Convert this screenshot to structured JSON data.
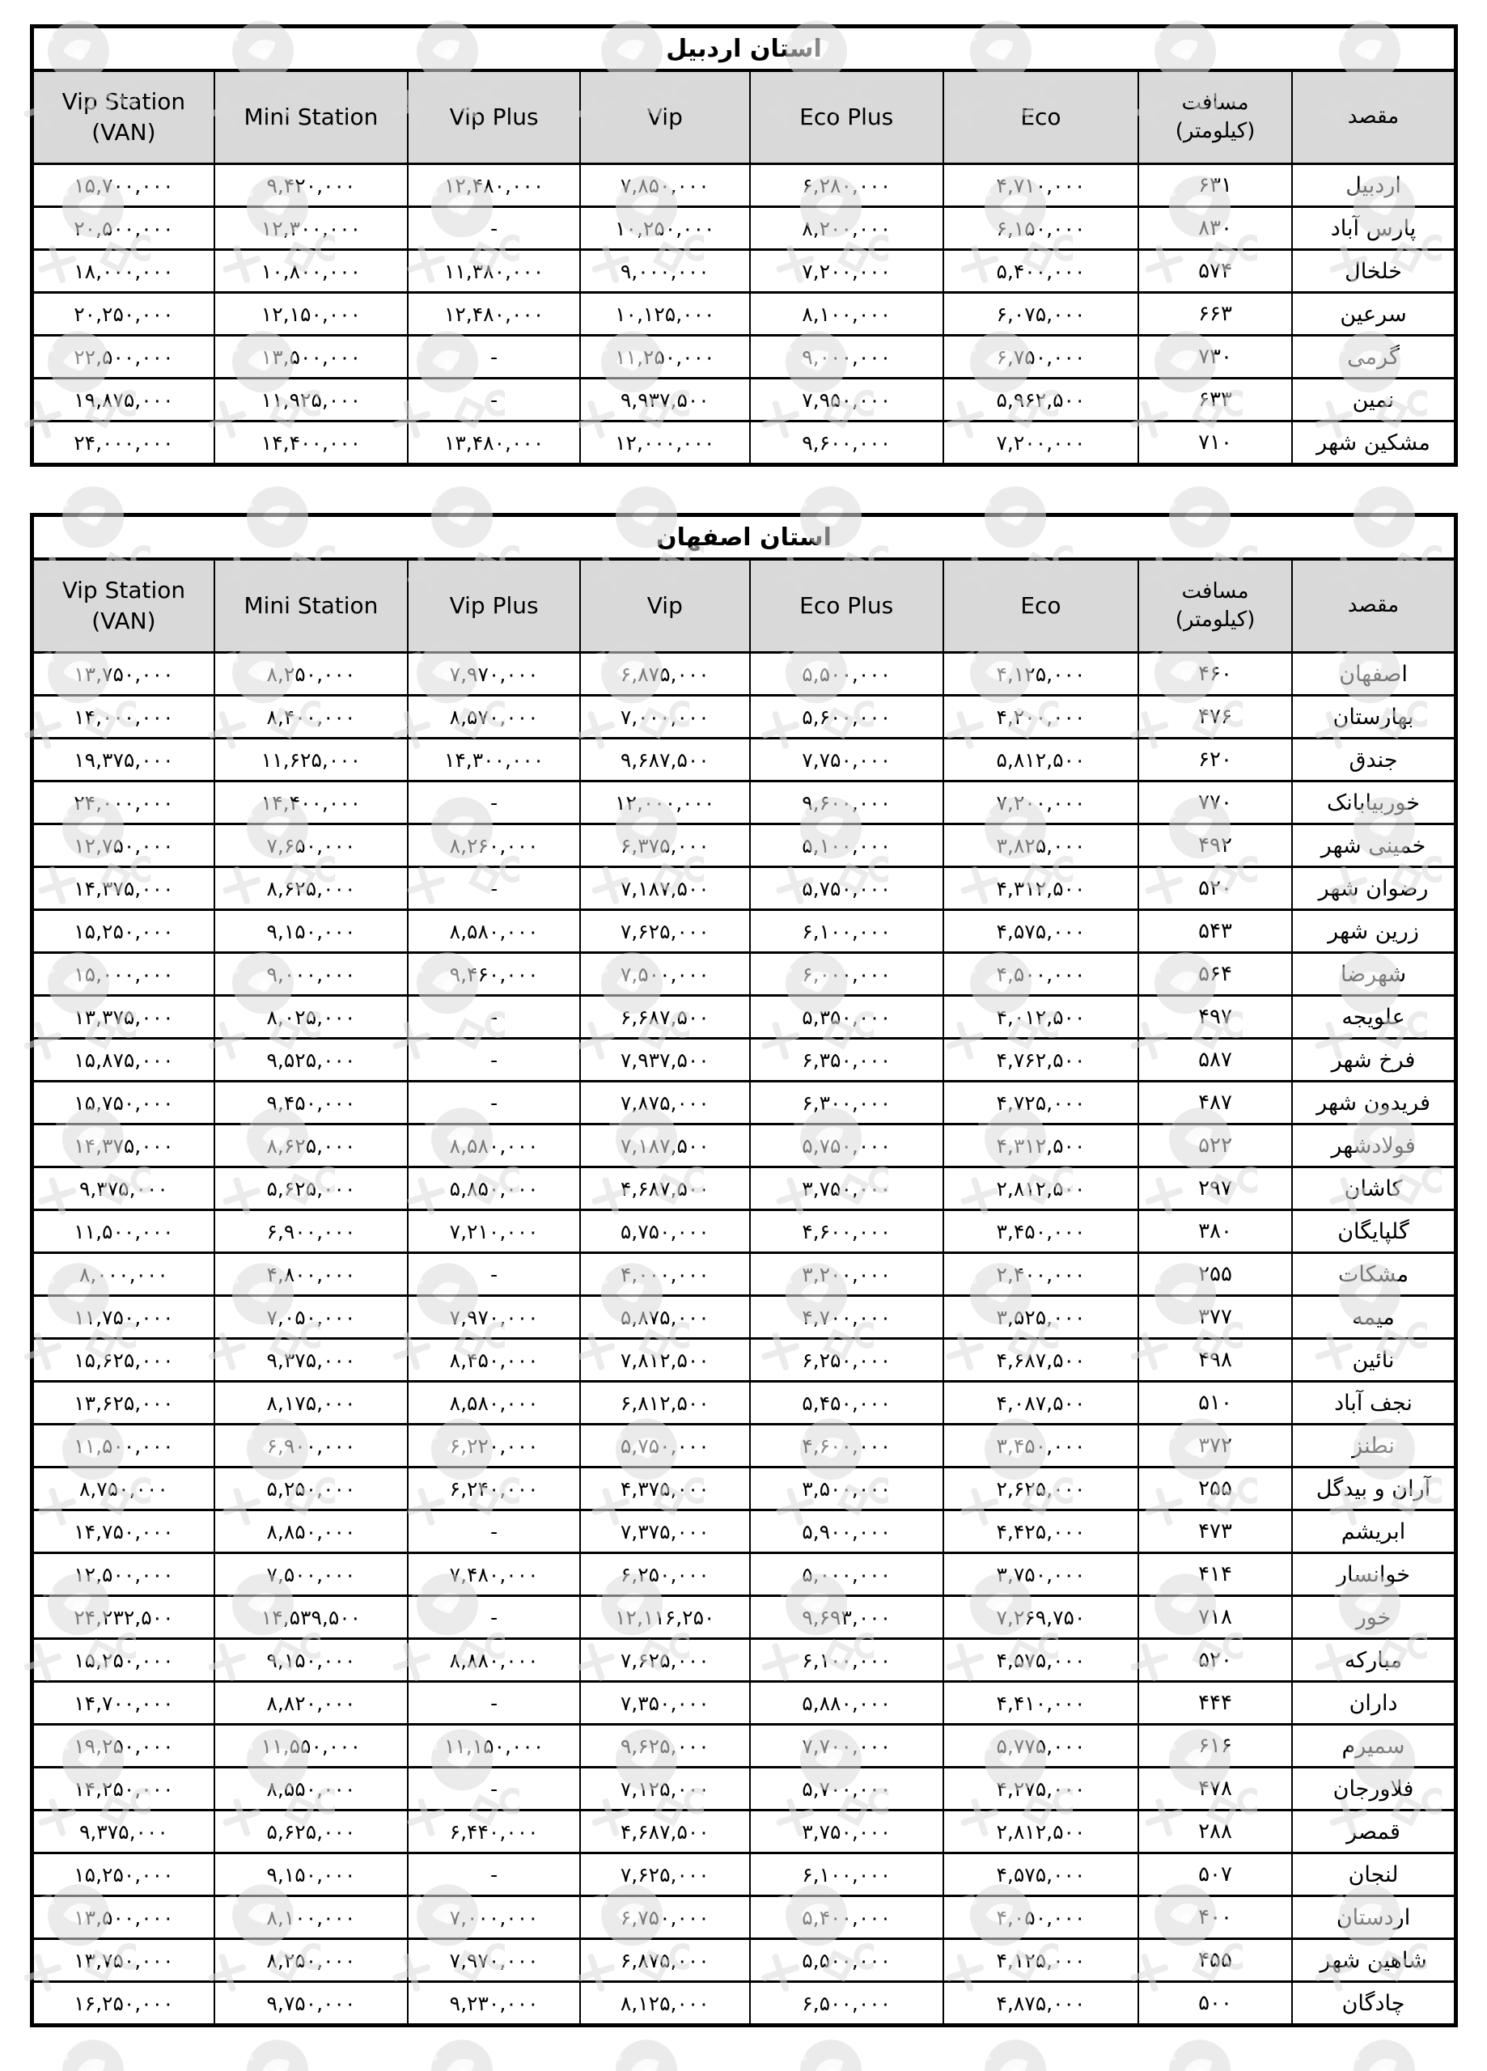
{
  "page": {
    "background": "#ffffff",
    "text_color": "#000000",
    "header_bg": "#d9d9d9",
    "border_color": "#000000",
    "watermark_color": "#dcdcdc",
    "empty_cell": "-"
  },
  "columns": [
    {
      "key": "vip_station_van",
      "lines": [
        "Vip Station",
        "(VAN)"
      ],
      "rtl": false
    },
    {
      "key": "mini_station",
      "lines": [
        "Mini Station"
      ],
      "rtl": false
    },
    {
      "key": "vip_plus",
      "lines": [
        "Vip Plus"
      ],
      "rtl": false
    },
    {
      "key": "vip",
      "lines": [
        "Vip"
      ],
      "rtl": false
    },
    {
      "key": "eco_plus",
      "lines": [
        "Eco Plus"
      ],
      "rtl": false
    },
    {
      "key": "eco",
      "lines": [
        "Eco"
      ],
      "rtl": false
    },
    {
      "key": "distance",
      "lines": [
        "مسافت",
        "(کیلومتر)"
      ],
      "rtl": true
    },
    {
      "key": "destination",
      "lines": [
        "مقصد"
      ],
      "rtl": true
    }
  ],
  "tables": [
    {
      "title": "استان اردبیل",
      "rows": [
        [
          "۱۵,۷۰۰,۰۰۰",
          "۹,۴۲۰,۰۰۰",
          "۱۲,۴۸۰,۰۰۰",
          "۷,۸۵۰,۰۰۰",
          "۶,۲۸۰,۰۰۰",
          "۴,۷۱۰,۰۰۰",
          "۶۳۱",
          "اردبیل"
        ],
        [
          "۲۰,۵۰۰,۰۰۰",
          "۱۲,۳۰۰,۰۰۰",
          "-",
          "۱۰,۲۵۰,۰۰۰",
          "۸,۲۰۰,۰۰۰",
          "۶,۱۵۰,۰۰۰",
          "۸۳۰",
          "پارس آباد"
        ],
        [
          "۱۸,۰۰۰,۰۰۰",
          "۱۰,۸۰۰,۰۰۰",
          "۱۱,۳۸۰,۰۰۰",
          "۹,۰۰۰,۰۰۰",
          "۷,۲۰۰,۰۰۰",
          "۵,۴۰۰,۰۰۰",
          "۵۷۴",
          "خلخال"
        ],
        [
          "۲۰,۲۵۰,۰۰۰",
          "۱۲,۱۵۰,۰۰۰",
          "۱۲,۴۸۰,۰۰۰",
          "۱۰,۱۲۵,۰۰۰",
          "۸,۱۰۰,۰۰۰",
          "۶,۰۷۵,۰۰۰",
          "۶۶۳",
          "سرعین"
        ],
        [
          "۲۲,۵۰۰,۰۰۰",
          "۱۳,۵۰۰,۰۰۰",
          "-",
          "۱۱,۲۵۰,۰۰۰",
          "۹,۰۰۰,۰۰۰",
          "۶,۷۵۰,۰۰۰",
          "۷۳۰",
          "گرمی"
        ],
        [
          "۱۹,۸۷۵,۰۰۰",
          "۱۱,۹۲۵,۰۰۰",
          "-",
          "۹,۹۳۷,۵۰۰",
          "۷,۹۵۰,۰۰۰",
          "۵,۹۶۲,۵۰۰",
          "۶۳۳",
          "نمین"
        ],
        [
          "۲۴,۰۰۰,۰۰۰",
          "۱۴,۴۰۰,۰۰۰",
          "۱۳,۴۸۰,۰۰۰",
          "۱۲,۰۰۰,۰۰۰",
          "۹,۶۰۰,۰۰۰",
          "۷,۲۰۰,۰۰۰",
          "۷۱۰",
          "مشکین شهر"
        ]
      ]
    },
    {
      "title": "استان اصفهان",
      "rows": [
        [
          "۱۳,۷۵۰,۰۰۰",
          "۸,۲۵۰,۰۰۰",
          "۷,۹۷۰,۰۰۰",
          "۶,۸۷۵,۰۰۰",
          "۵,۵۰۰,۰۰۰",
          "۴,۱۲۵,۰۰۰",
          "۴۶۰",
          "اصفهان"
        ],
        [
          "۱۴,۰۰۰,۰۰۰",
          "۸,۴۰۰,۰۰۰",
          "۸,۵۷۰,۰۰۰",
          "۷,۰۰۰,۰۰۰",
          "۵,۶۰۰,۰۰۰",
          "۴,۲۰۰,۰۰۰",
          "۴۷۶",
          "بهارستان"
        ],
        [
          "۱۹,۳۷۵,۰۰۰",
          "۱۱,۶۲۵,۰۰۰",
          "۱۴,۳۰۰,۰۰۰",
          "۹,۶۸۷,۵۰۰",
          "۷,۷۵۰,۰۰۰",
          "۵,۸۱۲,۵۰۰",
          "۶۲۰",
          "جندق"
        ],
        [
          "۲۴,۰۰۰,۰۰۰",
          "۱۴,۴۰۰,۰۰۰",
          "-",
          "۱۲,۰۰۰,۰۰۰",
          "۹,۶۰۰,۰۰۰",
          "۷,۲۰۰,۰۰۰",
          "۷۷۰",
          "خوربیابانک"
        ],
        [
          "۱۲,۷۵۰,۰۰۰",
          "۷,۶۵۰,۰۰۰",
          "۸,۲۶۰,۰۰۰",
          "۶,۳۷۵,۰۰۰",
          "۵,۱۰۰,۰۰۰",
          "۳,۸۲۵,۰۰۰",
          "۴۹۲",
          "خمینی شهر"
        ],
        [
          "۱۴,۳۷۵,۰۰۰",
          "۸,۶۲۵,۰۰۰",
          "-",
          "۷,۱۸۷,۵۰۰",
          "۵,۷۵۰,۰۰۰",
          "۴,۳۱۲,۵۰۰",
          "۵۲۰",
          "رضوان شهر"
        ],
        [
          "۱۵,۲۵۰,۰۰۰",
          "۹,۱۵۰,۰۰۰",
          "۸,۵۸۰,۰۰۰",
          "۷,۶۲۵,۰۰۰",
          "۶,۱۰۰,۰۰۰",
          "۴,۵۷۵,۰۰۰",
          "۵۴۳",
          "زرین شهر"
        ],
        [
          "۱۵,۰۰۰,۰۰۰",
          "۹,۰۰۰,۰۰۰",
          "۹,۴۶۰,۰۰۰",
          "۷,۵۰۰,۰۰۰",
          "۶,۰۰۰,۰۰۰",
          "۴,۵۰۰,۰۰۰",
          "۵۶۴",
          "شهرضا"
        ],
        [
          "۱۳,۳۷۵,۰۰۰",
          "۸,۰۲۵,۰۰۰",
          "-",
          "۶,۶۸۷,۵۰۰",
          "۵,۳۵۰,۰۰۰",
          "۴,۰۱۲,۵۰۰",
          "۴۹۷",
          "علویجه"
        ],
        [
          "۱۵,۸۷۵,۰۰۰",
          "۹,۵۲۵,۰۰۰",
          "-",
          "۷,۹۳۷,۵۰۰",
          "۶,۳۵۰,۰۰۰",
          "۴,۷۶۲,۵۰۰",
          "۵۸۷",
          "فرخ شهر"
        ],
        [
          "۱۵,۷۵۰,۰۰۰",
          "۹,۴۵۰,۰۰۰",
          "-",
          "۷,۸۷۵,۰۰۰",
          "۶,۳۰۰,۰۰۰",
          "۴,۷۲۵,۰۰۰",
          "۴۸۷",
          "فریدون شهر"
        ],
        [
          "۱۴,۳۷۵,۰۰۰",
          "۸,۶۲۵,۰۰۰",
          "۸,۵۸۰,۰۰۰",
          "۷,۱۸۷,۵۰۰",
          "۵,۷۵۰,۰۰۰",
          "۴,۳۱۲,۵۰۰",
          "۵۲۲",
          "فولادشهر"
        ],
        [
          "۹,۳۷۵,۰۰۰",
          "۵,۶۲۵,۰۰۰",
          "۵,۸۵۰,۰۰۰",
          "۴,۶۸۷,۵۰۰",
          "۳,۷۵۰,۰۰۰",
          "۲,۸۱۲,۵۰۰",
          "۲۹۷",
          "کاشان"
        ],
        [
          "۱۱,۵۰۰,۰۰۰",
          "۶,۹۰۰,۰۰۰",
          "۷,۲۱۰,۰۰۰",
          "۵,۷۵۰,۰۰۰",
          "۴,۶۰۰,۰۰۰",
          "۳,۴۵۰,۰۰۰",
          "۳۸۰",
          "گلپایگان"
        ],
        [
          "۸,۰۰۰,۰۰۰",
          "۴,۸۰۰,۰۰۰",
          "-",
          "۴,۰۰۰,۰۰۰",
          "۳,۲۰۰,۰۰۰",
          "۲,۴۰۰,۰۰۰",
          "۲۵۵",
          "مشکات"
        ],
        [
          "۱۱,۷۵۰,۰۰۰",
          "۷,۰۵۰,۰۰۰",
          "۷,۹۷۰,۰۰۰",
          "۵,۸۷۵,۰۰۰",
          "۴,۷۰۰,۰۰۰",
          "۳,۵۲۵,۰۰۰",
          "۳۷۷",
          "میمه"
        ],
        [
          "۱۵,۶۲۵,۰۰۰",
          "۹,۳۷۵,۰۰۰",
          "۸,۴۵۰,۰۰۰",
          "۷,۸۱۲,۵۰۰",
          "۶,۲۵۰,۰۰۰",
          "۴,۶۸۷,۵۰۰",
          "۴۹۸",
          "نائین"
        ],
        [
          "۱۳,۶۲۵,۰۰۰",
          "۸,۱۷۵,۰۰۰",
          "۸,۵۸۰,۰۰۰",
          "۶,۸۱۲,۵۰۰",
          "۵,۴۵۰,۰۰۰",
          "۴,۰۸۷,۵۰۰",
          "۵۱۰",
          "نجف آباد"
        ],
        [
          "۱۱,۵۰۰,۰۰۰",
          "۶,۹۰۰,۰۰۰",
          "۶,۲۲۰,۰۰۰",
          "۵,۷۵۰,۰۰۰",
          "۴,۶۰۰,۰۰۰",
          "۳,۴۵۰,۰۰۰",
          "۳۷۲",
          "نطنز"
        ],
        [
          "۸,۷۵۰,۰۰۰",
          "۵,۲۵۰,۰۰۰",
          "۶,۲۴۰,۰۰۰",
          "۴,۳۷۵,۰۰۰",
          "۳,۵۰۰,۰۰۰",
          "۲,۶۲۵,۰۰۰",
          "۲۵۵",
          "آران و بیدگل"
        ],
        [
          "۱۴,۷۵۰,۰۰۰",
          "۸,۸۵۰,۰۰۰",
          "-",
          "۷,۳۷۵,۰۰۰",
          "۵,۹۰۰,۰۰۰",
          "۴,۴۲۵,۰۰۰",
          "۴۷۳",
          "ابریشم"
        ],
        [
          "۱۲,۵۰۰,۰۰۰",
          "۷,۵۰۰,۰۰۰",
          "۷,۴۸۰,۰۰۰",
          "۶,۲۵۰,۰۰۰",
          "۵,۰۰۰,۰۰۰",
          "۳,۷۵۰,۰۰۰",
          "۴۱۴",
          "خوانسار"
        ],
        [
          "۲۴,۲۳۲,۵۰۰",
          "۱۴,۵۳۹,۵۰۰",
          "-",
          "۱۲,۱۱۶,۲۵۰",
          "۹,۶۹۳,۰۰۰",
          "۷,۲۶۹,۷۵۰",
          "۷۱۸",
          "خور"
        ],
        [
          "۱۵,۲۵۰,۰۰۰",
          "۹,۱۵۰,۰۰۰",
          "۸,۸۸۰,۰۰۰",
          "۷,۶۲۵,۰۰۰",
          "۶,۱۰۰,۰۰۰",
          "۴,۵۷۵,۰۰۰",
          "۵۲۰",
          "مبارکه"
        ],
        [
          "۱۴,۷۰۰,۰۰۰",
          "۸,۸۲۰,۰۰۰",
          "-",
          "۷,۳۵۰,۰۰۰",
          "۵,۸۸۰,۰۰۰",
          "۴,۴۱۰,۰۰۰",
          "۴۴۴",
          "داران"
        ],
        [
          "۱۹,۲۵۰,۰۰۰",
          "۱۱,۵۵۰,۰۰۰",
          "۱۱,۱۵۰,۰۰۰",
          "۹,۶۲۵,۰۰۰",
          "۷,۷۰۰,۰۰۰",
          "۵,۷۷۵,۰۰۰",
          "۶۱۶",
          "سمیرم"
        ],
        [
          "۱۴,۲۵۰,۰۰۰",
          "۸,۵۵۰,۰۰۰",
          "-",
          "۷,۱۲۵,۰۰۰",
          "۵,۷۰۰,۰۰۰",
          "۴,۲۷۵,۰۰۰",
          "۴۷۸",
          "فلاورجان"
        ],
        [
          "۹,۳۷۵,۰۰۰",
          "۵,۶۲۵,۰۰۰",
          "۶,۴۴۰,۰۰۰",
          "۴,۶۸۷,۵۰۰",
          "۳,۷۵۰,۰۰۰",
          "۲,۸۱۲,۵۰۰",
          "۲۸۸",
          "قمصر"
        ],
        [
          "۱۵,۲۵۰,۰۰۰",
          "۹,۱۵۰,۰۰۰",
          "-",
          "۷,۶۲۵,۰۰۰",
          "۶,۱۰۰,۰۰۰",
          "۴,۵۷۵,۰۰۰",
          "۵۰۷",
          "لنجان"
        ],
        [
          "۱۳,۵۰۰,۰۰۰",
          "۸,۱۰۰,۰۰۰",
          "۷,۰۰۰,۰۰۰",
          "۶,۷۵۰,۰۰۰",
          "۵,۴۰۰,۰۰۰",
          "۴,۰۵۰,۰۰۰",
          "۴۰۰",
          "اردستان"
        ],
        [
          "۱۳,۷۵۰,۰۰۰",
          "۸,۲۵۰,۰۰۰",
          "۷,۹۷۰,۰۰۰",
          "۶,۸۷۵,۰۰۰",
          "۵,۵۰۰,۰۰۰",
          "۴,۱۲۵,۰۰۰",
          "۴۵۵",
          "شاهین شهر"
        ],
        [
          "۱۶,۲۵۰,۰۰۰",
          "۹,۷۵۰,۰۰۰",
          "۹,۲۳۰,۰۰۰",
          "۸,۱۲۵,۰۰۰",
          "۶,۵۰۰,۰۰۰",
          "۴,۸۷۵,۰۰۰",
          "۵۰۰",
          "چادگان"
        ]
      ]
    }
  ]
}
